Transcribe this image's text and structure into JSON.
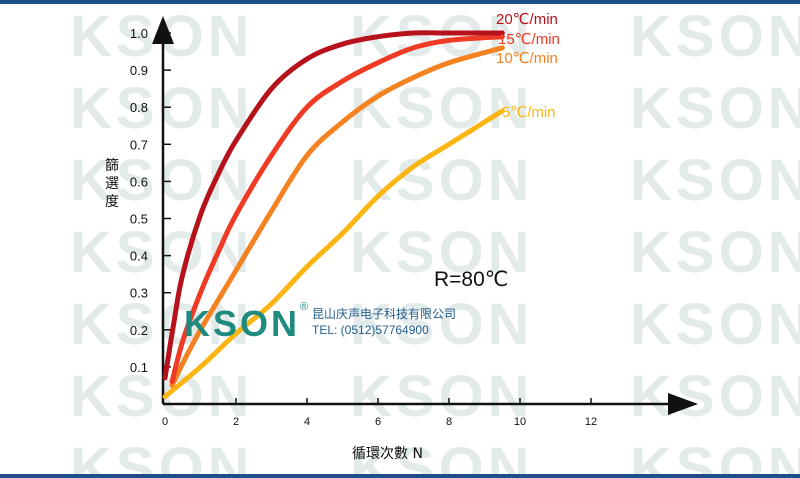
{
  "chart_data": {
    "type": "line",
    "title": "",
    "xlabel": "循環次數 N",
    "ylabel": "篩選度",
    "xlim": [
      0,
      16
    ],
    "ylim": [
      0,
      1.05
    ],
    "x_ticks": [
      "0",
      "2",
      "4",
      "6",
      "8",
      "10",
      "12"
    ],
    "y_ticks": [
      "0.1",
      "0.2",
      "0.3",
      "0.4",
      "0.5",
      "0.6",
      "0.7",
      "0.8",
      "0.9",
      "1.0"
    ],
    "grid": false,
    "legend_placement": "top-right",
    "annotation": "R=80℃",
    "series": [
      {
        "name": "20℃/min",
        "color": "#b5121b",
        "x": [
          0,
          0.25,
          0.5,
          1,
          1.5,
          2,
          3,
          4,
          5,
          6,
          7,
          8,
          9.5
        ],
        "y": [
          0.07,
          0.22,
          0.35,
          0.51,
          0.62,
          0.71,
          0.85,
          0.93,
          0.97,
          0.99,
          1.0,
          1.0,
          1.0
        ]
      },
      {
        "name": "15℃/min",
        "color": "#ef3b24",
        "x": [
          0.2,
          0.5,
          1,
          1.5,
          2,
          3,
          4,
          5,
          6,
          7,
          8,
          9.5
        ],
        "y": [
          0.06,
          0.17,
          0.3,
          0.41,
          0.51,
          0.67,
          0.8,
          0.87,
          0.92,
          0.96,
          0.98,
          0.99
        ]
      },
      {
        "name": "10℃/min",
        "color": "#f58220",
        "x": [
          0.2,
          0.5,
          1,
          2,
          3,
          4,
          5,
          6,
          7,
          8,
          9.5
        ],
        "y": [
          0.05,
          0.11,
          0.2,
          0.36,
          0.52,
          0.67,
          0.76,
          0.83,
          0.88,
          0.92,
          0.96
        ]
      },
      {
        "name": "5℃/min",
        "color": "#fbb614",
        "x": [
          0,
          1,
          2,
          3,
          4,
          5,
          6,
          7,
          8,
          9.5
        ],
        "y": [
          0.02,
          0.1,
          0.19,
          0.27,
          0.37,
          0.46,
          0.56,
          0.64,
          0.7,
          0.79
        ]
      }
    ]
  },
  "watermark": {
    "text": "KSON"
  },
  "logo": {
    "text": "KSON",
    "registered": "®",
    "company": "昆山庆声电子科技有限公司",
    "tel": "TEL: (0512)57764900"
  },
  "colors": {
    "frame_border": "#1f4e8c",
    "watermark": "#e3eaea",
    "logo": "#1f8a7e",
    "company_text": "#1f5d8c"
  }
}
